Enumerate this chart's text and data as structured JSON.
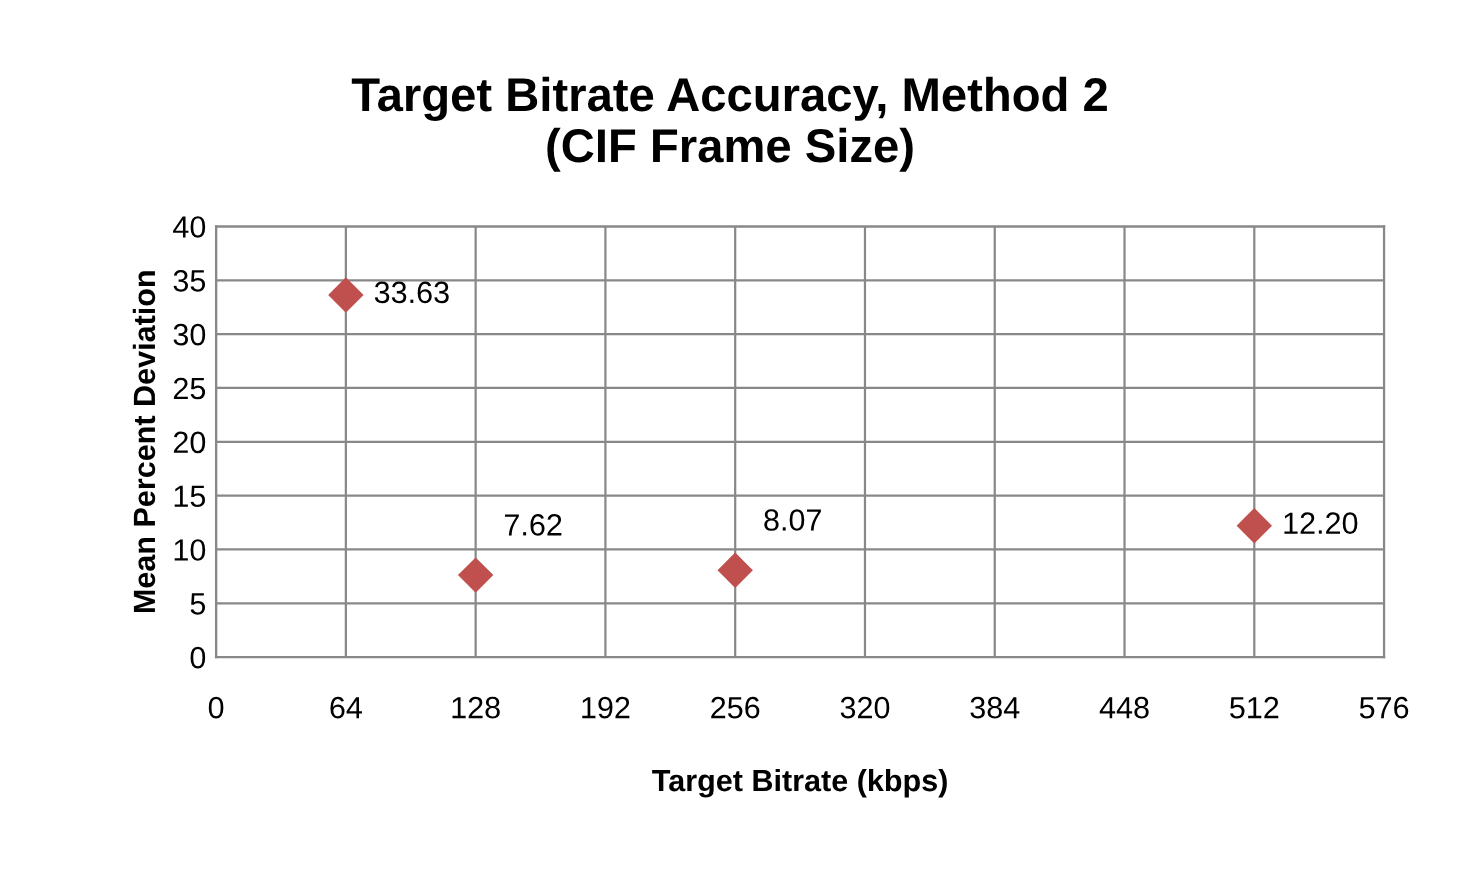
{
  "chart_data": {
    "type": "scatter",
    "title": "Target Bitrate Accuracy, Method 2\n(CIF Frame Size)",
    "xlabel": "Target Bitrate (kbps)",
    "ylabel": "Mean Percent Deviation",
    "x": [
      64,
      128,
      256,
      512
    ],
    "series": [
      {
        "color": "#c0504d",
        "values": [
          33.63,
          7.62,
          8.07,
          12.2
        ],
        "value_labels": [
          "33.63",
          "7.62",
          "8.07",
          "12.20"
        ]
      }
    ],
    "xlim": [
      0,
      576
    ],
    "xticks": [
      0,
      64,
      128,
      192,
      256,
      320,
      384,
      448,
      512,
      576
    ],
    "ylim": [
      0,
      40
    ],
    "yticks": [
      0,
      5,
      10,
      15,
      20,
      25,
      30,
      35,
      40
    ],
    "grid": true,
    "legend": false,
    "marker": "diamond"
  }
}
